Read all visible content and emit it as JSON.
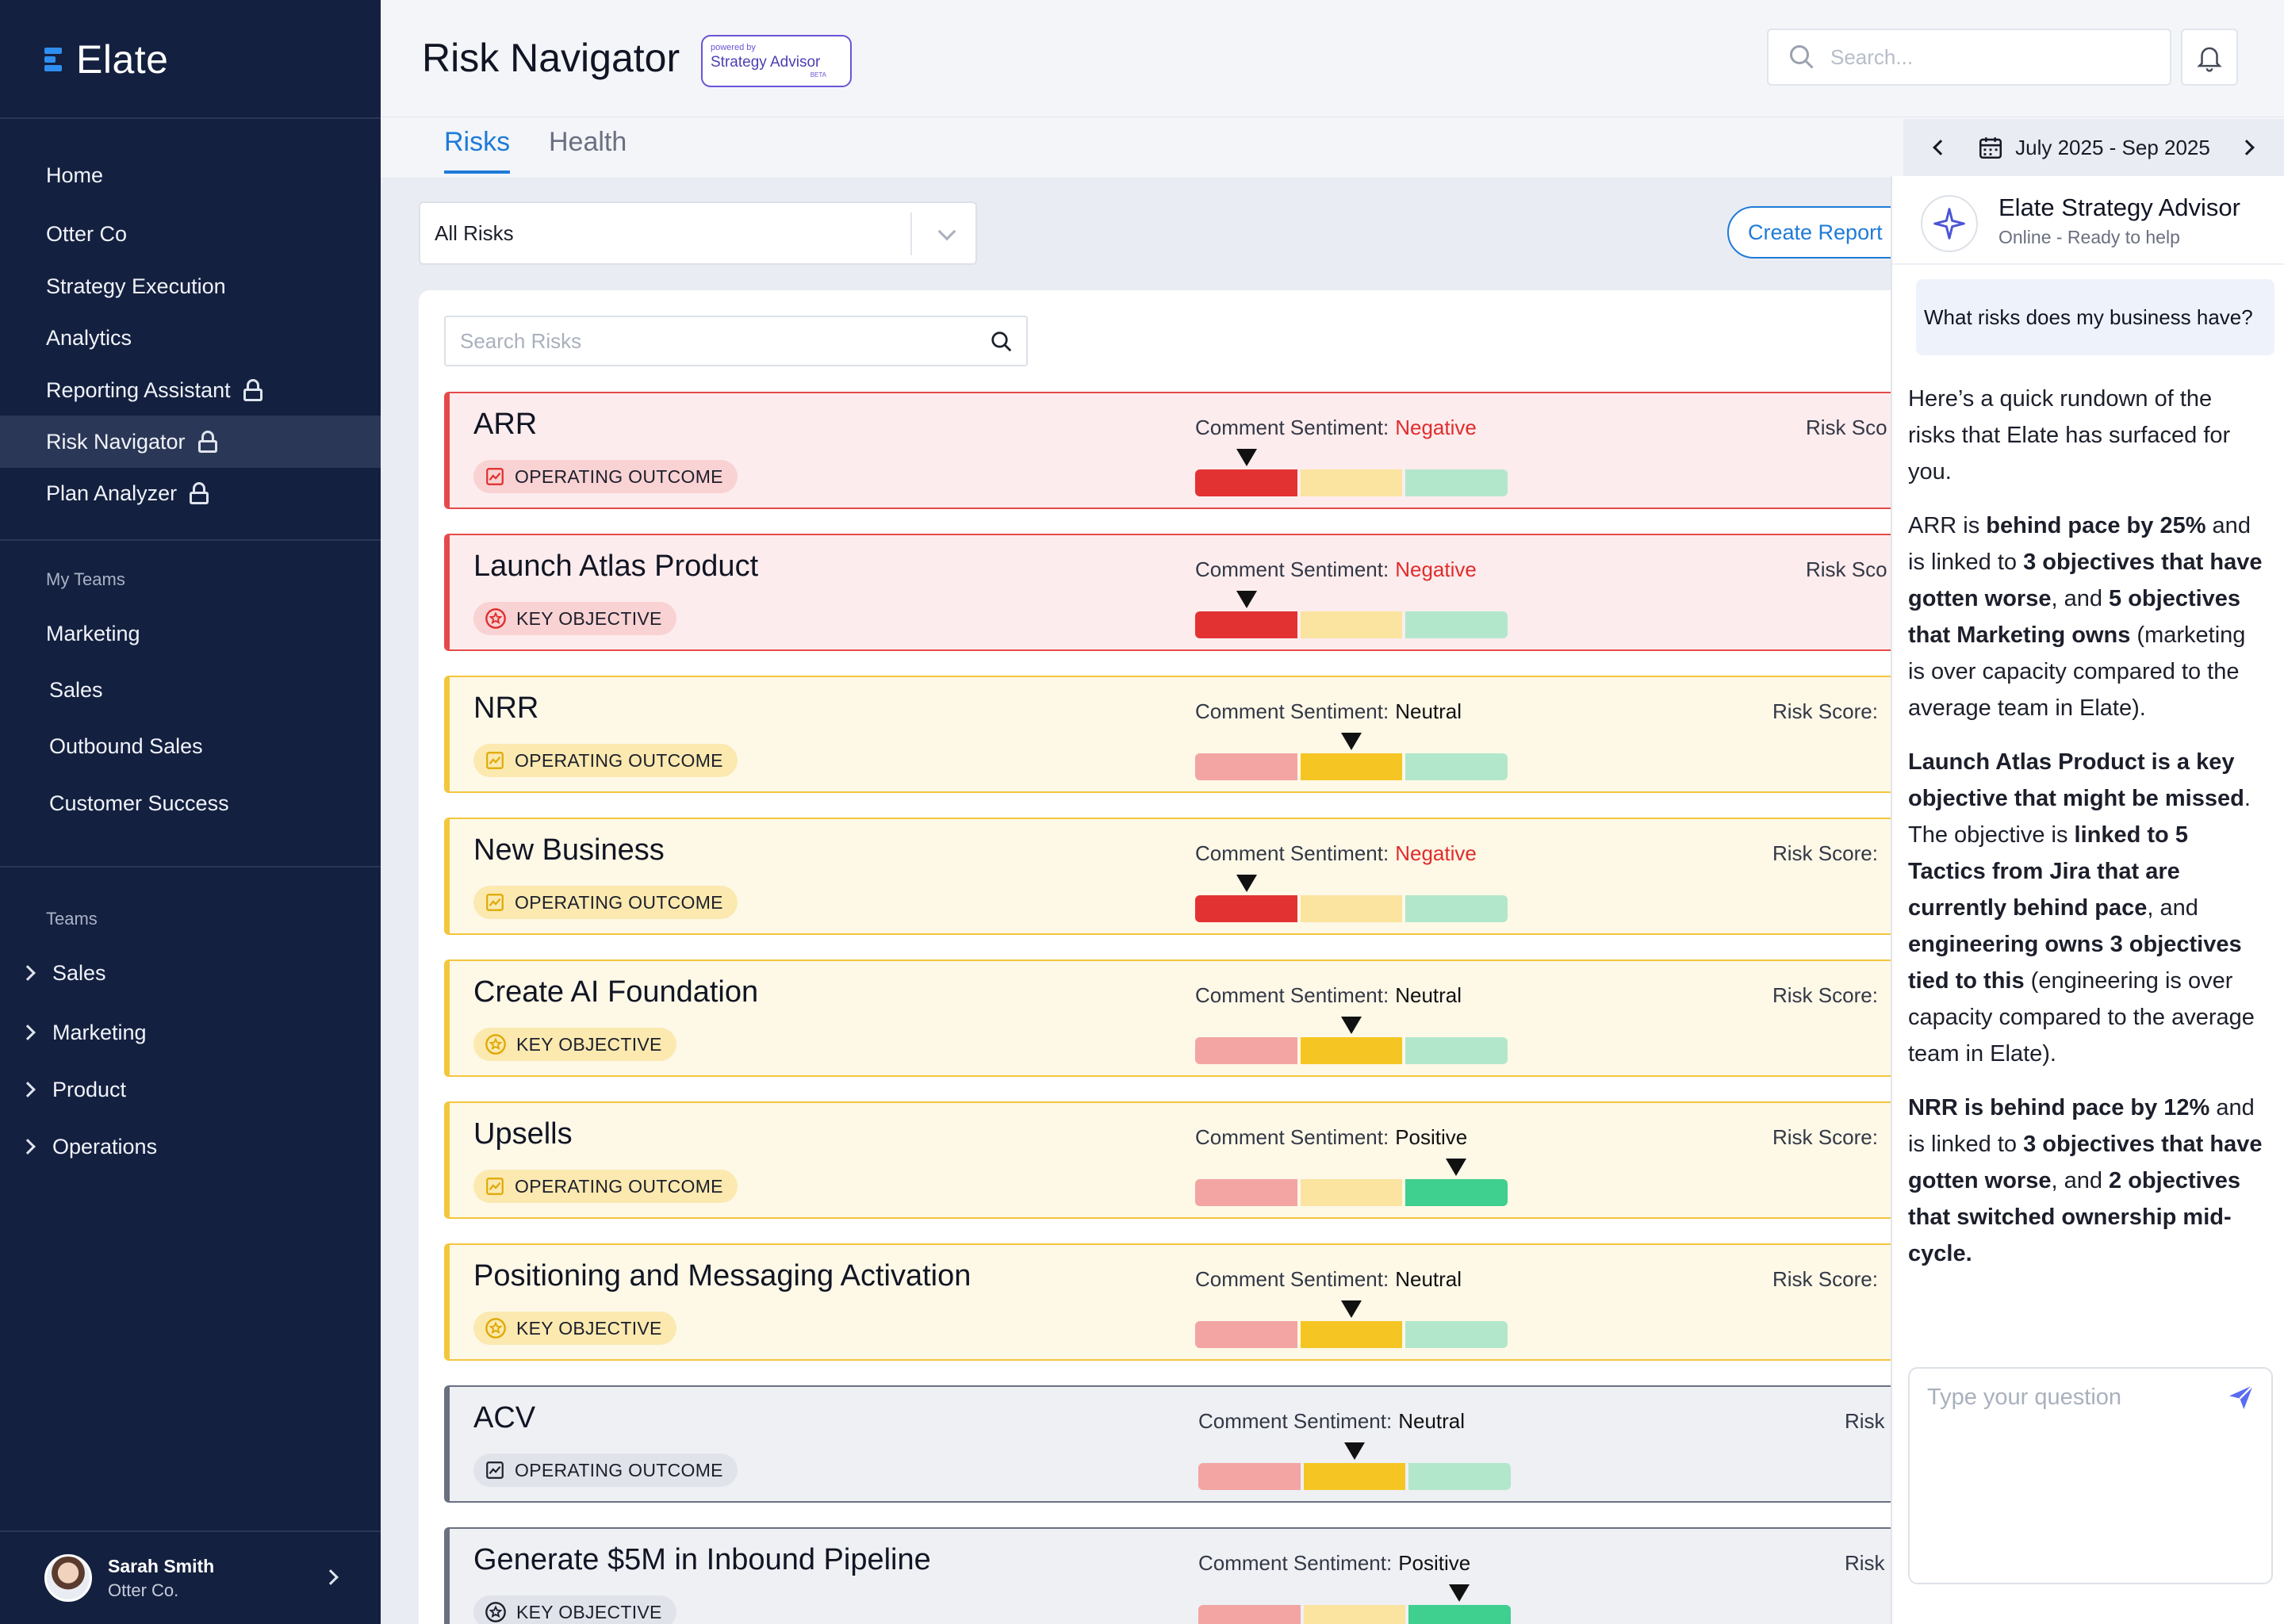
{
  "brand": {
    "name": "Elate",
    "accent": "#2f8ff0",
    "sidebar_bg": "#14203f"
  },
  "sidebar": {
    "nav": [
      {
        "label": "Home",
        "locked": false,
        "active": false
      },
      {
        "label": "Otter Co",
        "locked": false,
        "active": false
      },
      {
        "label": "Strategy Execution",
        "locked": false,
        "active": false
      },
      {
        "label": "Analytics",
        "locked": false,
        "active": false
      },
      {
        "label": "Reporting Assistant",
        "locked": true,
        "active": false
      },
      {
        "label": "Risk Navigator",
        "locked": true,
        "active": true
      },
      {
        "label": "Plan Analyzer",
        "locked": true,
        "active": false
      }
    ],
    "my_teams_label": "My Teams",
    "my_teams": [
      "Marketing",
      "Sales",
      "Outbound Sales",
      "Customer Success"
    ],
    "teams_label": "Teams",
    "teams": [
      "Sales",
      "Marketing",
      "Product",
      "Operations"
    ],
    "user": {
      "name": "Sarah Smith",
      "org": "Otter Co."
    }
  },
  "header": {
    "title": "Risk Navigator",
    "powered_line1": "powered by",
    "powered_line2": "Strategy Advisor",
    "powered_line3": "BETA",
    "search_placeholder": "Search...",
    "bell_icon": "bell-icon"
  },
  "tabs": [
    {
      "label": "Risks",
      "active": true
    },
    {
      "label": "Health",
      "active": false
    }
  ],
  "date_range": {
    "label": "July 2025 - Sep 2025"
  },
  "toolbar": {
    "filter_value": "All Risks",
    "create_report_label": "Create Report",
    "risk_search_placeholder": "Search Risks"
  },
  "sentiment_label": "Comment Sentiment:",
  "risks": [
    {
      "title": "ARR",
      "tag": "OPERATING OUTCOME",
      "tag_icon": "chart-icon",
      "level": "red",
      "sentiment": "Negative",
      "score_label": "Risk Sco"
    },
    {
      "title": "Launch Atlas Product",
      "tag": "KEY OBJECTIVE",
      "tag_icon": "star-badge-icon",
      "level": "red",
      "sentiment": "Negative",
      "score_label": "Risk Sco"
    },
    {
      "title": "NRR",
      "tag": "OPERATING OUTCOME",
      "tag_icon": "chart-icon",
      "level": "yellow",
      "sentiment": "Neutral",
      "score_label": "Risk Score:"
    },
    {
      "title": "New Business",
      "tag": "OPERATING OUTCOME",
      "tag_icon": "chart-icon",
      "level": "yellow",
      "sentiment": "Negative",
      "score_label": "Risk Score:"
    },
    {
      "title": "Create AI Foundation",
      "tag": "KEY OBJECTIVE",
      "tag_icon": "star-badge-icon",
      "level": "yellow",
      "sentiment": "Neutral",
      "score_label": "Risk Score:"
    },
    {
      "title": "Upsells",
      "tag": "OPERATING OUTCOME",
      "tag_icon": "chart-icon",
      "level": "yellow",
      "sentiment": "Positive",
      "score_label": "Risk Score:"
    },
    {
      "title": "Positioning and Messaging Activation",
      "tag": "KEY OBJECTIVE",
      "tag_icon": "star-badge-icon",
      "level": "yellow",
      "sentiment": "Neutral",
      "score_label": "Risk Score:"
    },
    {
      "title": "ACV",
      "tag": "OPERATING OUTCOME",
      "tag_icon": "chart-icon",
      "level": "gray",
      "sentiment": "Neutral",
      "score_label": "Risk Sc"
    },
    {
      "title": "Generate $5M in Inbound Pipeline",
      "tag": "KEY OBJECTIVE",
      "tag_icon": "star-badge-icon",
      "level": "gray",
      "sentiment": "Positive",
      "score_label": "Risk Sc"
    }
  ],
  "colors": {
    "negative": "#e02c2c",
    "red_seg": "#e33232",
    "yellow_seg": "#f5c623",
    "green_seg": "#3fcf8e",
    "pink_light": "#f2a5a3",
    "yellow_light": "#fbe3a0",
    "green_light": "#b2e7cb"
  },
  "chat": {
    "name": "Elate Strategy Advisor",
    "status": "Online - Ready to help",
    "question": "What risks does my business have?",
    "input_placeholder": "Type your question",
    "answer": {
      "p1": "Here’s a quick rundown of the risks that Elate has surfaced for you.",
      "p2": [
        {
          "t": "ARR is "
        },
        {
          "b": "behind pace by 25%"
        },
        {
          "t": " and is linked to "
        },
        {
          "b": "3 objectives that have gotten worse"
        },
        {
          "t": ", and "
        },
        {
          "b": "5 objectives that Marketing owns"
        },
        {
          "t": " (marketing is over capacity compared to the average team in Elate)."
        }
      ],
      "p3": [
        {
          "b": "Launch Atlas Product is a key objective that might be missed"
        },
        {
          "t": ". The objective is "
        },
        {
          "b": "linked to 5 Tactics from Jira that are currently behind pace"
        },
        {
          "t": ", and "
        },
        {
          "b": "engineering owns 3 objectives tied to this"
        },
        {
          "t": " (engineering is over capacity compared to the average team in Elate)."
        }
      ],
      "p4": [
        {
          "b": "NRR is behind pace by 12%"
        },
        {
          "t": " and is linked to "
        },
        {
          "b": "3 objectives that have gotten worse"
        },
        {
          "t": ", and "
        },
        {
          "b": "2 objectives that switched ownership mid-cycle."
        }
      ]
    }
  }
}
